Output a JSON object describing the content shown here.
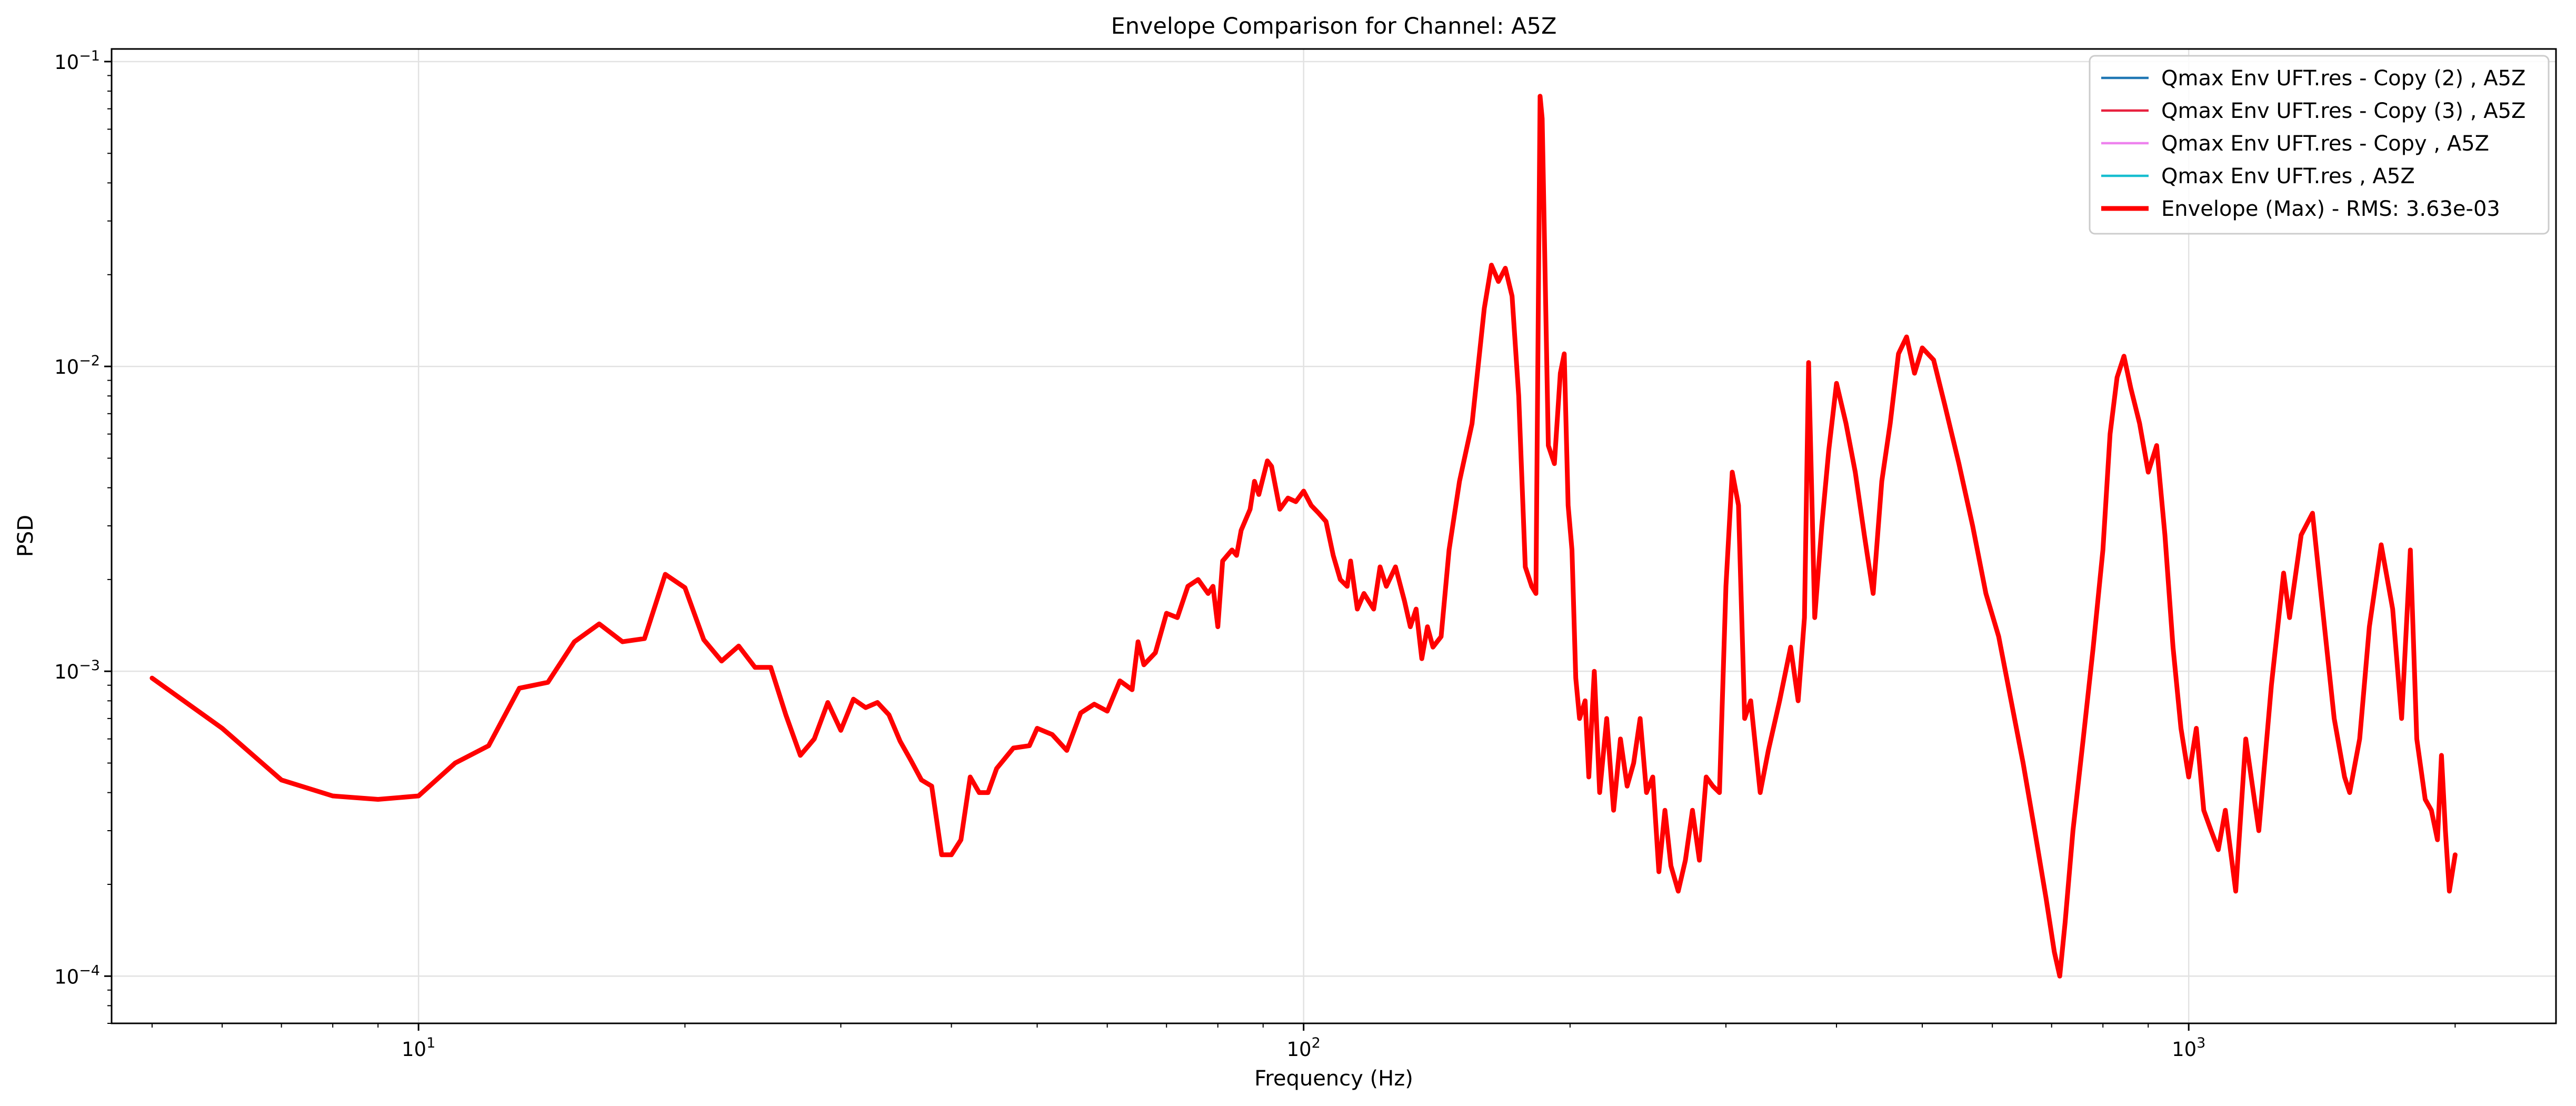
{
  "chart_data": {
    "type": "line",
    "title": "Envelope Comparison for Channel: A5Z",
    "xlabel": "Frequency (Hz)",
    "ylabel": "PSD",
    "x_scale": "log",
    "y_scale": "log",
    "xlim": [
      4.5,
      2600
    ],
    "ylim": [
      7e-05,
      0.11
    ],
    "x_ticks": [
      {
        "value": 10,
        "base": "10",
        "exp": "1"
      },
      {
        "value": 100,
        "base": "10",
        "exp": "2"
      },
      {
        "value": 1000,
        "base": "10",
        "exp": "3"
      }
    ],
    "y_ticks": [
      {
        "value": 0.0001,
        "base": "10",
        "exp": "−4"
      },
      {
        "value": 0.001,
        "base": "10",
        "exp": "−3"
      },
      {
        "value": 0.01,
        "base": "10",
        "exp": "−2"
      },
      {
        "value": 0.1,
        "base": "10",
        "exp": "−1"
      }
    ],
    "grid": true,
    "legend_position": "top-right",
    "legend": [
      {
        "label": "Qmax Env UFT.res - Copy (2) , A5Z",
        "color": "#1f77b4"
      },
      {
        "label": "Qmax Env UFT.res - Copy (3) , A5Z",
        "color": "#e8213f"
      },
      {
        "label": "Qmax Env UFT.res - Copy , A5Z",
        "color": "#ee82ee"
      },
      {
        "label": "Qmax Env UFT.res , A5Z",
        "color": "#17becf"
      },
      {
        "label": "Envelope (Max) - RMS: 3.63e-03",
        "color": "#ff0000"
      }
    ],
    "series": [
      {
        "name": "Envelope (Max) - RMS: 3.63e-03",
        "color": "#ff0000",
        "points": [
          [
            5,
            0.00095
          ],
          [
            6,
            0.00065
          ],
          [
            7,
            0.00044
          ],
          [
            8,
            0.00039
          ],
          [
            9,
            0.00038
          ],
          [
            10,
            0.00039
          ],
          [
            11,
            0.0005
          ],
          [
            12,
            0.00057
          ],
          [
            13,
            0.00088
          ],
          [
            14,
            0.00092
          ],
          [
            15,
            0.00125
          ],
          [
            16,
            0.00143
          ],
          [
            17,
            0.00125
          ],
          [
            18,
            0.00128
          ],
          [
            19,
            0.00208
          ],
          [
            20,
            0.00188
          ],
          [
            21,
            0.00127
          ],
          [
            22,
            0.00108
          ],
          [
            23,
            0.00121
          ],
          [
            24,
            0.00103
          ],
          [
            25,
            0.00103
          ],
          [
            26,
            0.00072
          ],
          [
            27,
            0.00053
          ],
          [
            28,
            0.0006
          ],
          [
            29,
            0.00079
          ],
          [
            30,
            0.00064
          ],
          [
            31,
            0.00081
          ],
          [
            32,
            0.00076
          ],
          [
            33,
            0.00079
          ],
          [
            34,
            0.00072
          ],
          [
            35,
            0.00059
          ],
          [
            36,
            0.00051
          ],
          [
            37,
            0.00044
          ],
          [
            38,
            0.00042
          ],
          [
            39,
            0.00025
          ],
          [
            40,
            0.00025
          ],
          [
            41,
            0.00028
          ],
          [
            42,
            0.00045
          ],
          [
            43,
            0.0004
          ],
          [
            44,
            0.0004
          ],
          [
            45,
            0.00048
          ],
          [
            47,
            0.00056
          ],
          [
            49,
            0.00057
          ],
          [
            50,
            0.00065
          ],
          [
            52,
            0.00062
          ],
          [
            54,
            0.00055
          ],
          [
            56,
            0.00073
          ],
          [
            58,
            0.00078
          ],
          [
            60,
            0.00074
          ],
          [
            62,
            0.00093
          ],
          [
            64,
            0.00087
          ],
          [
            65,
            0.00125
          ],
          [
            66,
            0.00105
          ],
          [
            68,
            0.00115
          ],
          [
            70,
            0.00155
          ],
          [
            72,
            0.0015
          ],
          [
            74,
            0.0019
          ],
          [
            76,
            0.002
          ],
          [
            78,
            0.0018
          ],
          [
            79,
            0.0019
          ],
          [
            80,
            0.0014
          ],
          [
            81,
            0.0023
          ],
          [
            83,
            0.0025
          ],
          [
            84,
            0.0024
          ],
          [
            85,
            0.0029
          ],
          [
            87,
            0.0034
          ],
          [
            88,
            0.0042
          ],
          [
            89,
            0.0038
          ],
          [
            91,
            0.0049
          ],
          [
            92,
            0.0047
          ],
          [
            94,
            0.0034
          ],
          [
            96,
            0.0037
          ],
          [
            98,
            0.0036
          ],
          [
            100,
            0.0039
          ],
          [
            102,
            0.0035
          ],
          [
            104,
            0.0033
          ],
          [
            106,
            0.0031
          ],
          [
            108,
            0.0024
          ],
          [
            110,
            0.002
          ],
          [
            112,
            0.0019
          ],
          [
            113,
            0.0023
          ],
          [
            115,
            0.0016
          ],
          [
            117,
            0.0018
          ],
          [
            120,
            0.0016
          ],
          [
            122,
            0.0022
          ],
          [
            124,
            0.0019
          ],
          [
            127,
            0.0022
          ],
          [
            130,
            0.0017
          ],
          [
            132,
            0.0014
          ],
          [
            134,
            0.0016
          ],
          [
            136,
            0.0011
          ],
          [
            138,
            0.0014
          ],
          [
            140,
            0.0012
          ],
          [
            143,
            0.0013
          ],
          [
            146,
            0.0025
          ],
          [
            150,
            0.0042
          ],
          [
            155,
            0.0065
          ],
          [
            160,
            0.0155
          ],
          [
            163,
            0.0215
          ],
          [
            166,
            0.019
          ],
          [
            169,
            0.021
          ],
          [
            172,
            0.017
          ],
          [
            175,
            0.008
          ],
          [
            178,
            0.0022
          ],
          [
            181,
            0.0019
          ],
          [
            183,
            0.0018
          ],
          [
            185,
            0.077
          ],
          [
            186,
            0.065
          ],
          [
            189,
            0.0055
          ],
          [
            192,
            0.0048
          ],
          [
            195,
            0.0095
          ],
          [
            197,
            0.011
          ],
          [
            199,
            0.0035
          ],
          [
            201,
            0.0025
          ],
          [
            203,
            0.00095
          ],
          [
            205,
            0.0007
          ],
          [
            208,
            0.0008
          ],
          [
            210,
            0.00045
          ],
          [
            213,
            0.001
          ],
          [
            216,
            0.0004
          ],
          [
            220,
            0.0007
          ],
          [
            224,
            0.00035
          ],
          [
            228,
            0.0006
          ],
          [
            232,
            0.00042
          ],
          [
            236,
            0.0005
          ],
          [
            240,
            0.0007
          ],
          [
            244,
            0.0004
          ],
          [
            248,
            0.00045
          ],
          [
            252,
            0.00022
          ],
          [
            256,
            0.00035
          ],
          [
            260,
            0.00023
          ],
          [
            265,
            0.00019
          ],
          [
            270,
            0.00024
          ],
          [
            275,
            0.00035
          ],
          [
            280,
            0.00024
          ],
          [
            285,
            0.00045
          ],
          [
            290,
            0.00042
          ],
          [
            295,
            0.0004
          ],
          [
            300,
            0.0019
          ],
          [
            305,
            0.0045
          ],
          [
            310,
            0.0035
          ],
          [
            315,
            0.0007
          ],
          [
            320,
            0.0008
          ],
          [
            328,
            0.0004
          ],
          [
            335,
            0.00055
          ],
          [
            345,
            0.0008
          ],
          [
            355,
            0.0012
          ],
          [
            362,
            0.0008
          ],
          [
            368,
            0.0015
          ],
          [
            372,
            0.0103
          ],
          [
            378,
            0.0015
          ],
          [
            385,
            0.003
          ],
          [
            392,
            0.0053
          ],
          [
            400,
            0.0088
          ],
          [
            410,
            0.0065
          ],
          [
            420,
            0.0045
          ],
          [
            430,
            0.0028
          ],
          [
            440,
            0.0018
          ],
          [
            450,
            0.0042
          ],
          [
            460,
            0.0065
          ],
          [
            470,
            0.011
          ],
          [
            480,
            0.0125
          ],
          [
            490,
            0.0095
          ],
          [
            500,
            0.0115
          ],
          [
            515,
            0.0105
          ],
          [
            530,
            0.0075
          ],
          [
            550,
            0.0048
          ],
          [
            570,
            0.003
          ],
          [
            590,
            0.0018
          ],
          [
            610,
            0.0013
          ],
          [
            630,
            0.0008
          ],
          [
            650,
            0.0005
          ],
          [
            670,
            0.0003
          ],
          [
            690,
            0.00018
          ],
          [
            705,
            0.00012
          ],
          [
            715,
            0.0001
          ],
          [
            725,
            0.00015
          ],
          [
            740,
            0.0003
          ],
          [
            760,
            0.0006
          ],
          [
            780,
            0.0012
          ],
          [
            800,
            0.0025
          ],
          [
            815,
            0.006
          ],
          [
            830,
            0.0092
          ],
          [
            845,
            0.0108
          ],
          [
            860,
            0.0085
          ],
          [
            880,
            0.0065
          ],
          [
            900,
            0.0045
          ],
          [
            920,
            0.0055
          ],
          [
            940,
            0.0028
          ],
          [
            960,
            0.0012
          ],
          [
            980,
            0.00065
          ],
          [
            1000,
            0.00045
          ],
          [
            1020,
            0.00065
          ],
          [
            1040,
            0.00035
          ],
          [
            1060,
            0.0003
          ],
          [
            1080,
            0.00026
          ],
          [
            1100,
            0.00035
          ],
          [
            1130,
            0.00019
          ],
          [
            1160,
            0.0006
          ],
          [
            1200,
            0.0003
          ],
          [
            1240,
            0.0009
          ],
          [
            1280,
            0.0021
          ],
          [
            1300,
            0.0015
          ],
          [
            1340,
            0.0028
          ],
          [
            1380,
            0.0033
          ],
          [
            1420,
            0.0015
          ],
          [
            1460,
            0.0007
          ],
          [
            1500,
            0.00045
          ],
          [
            1520,
            0.0004
          ],
          [
            1560,
            0.0006
          ],
          [
            1600,
            0.0014
          ],
          [
            1650,
            0.0026
          ],
          [
            1700,
            0.0016
          ],
          [
            1740,
            0.0007
          ],
          [
            1780,
            0.0025
          ],
          [
            1810,
            0.0006
          ],
          [
            1850,
            0.00038
          ],
          [
            1880,
            0.00035
          ],
          [
            1910,
            0.00028
          ],
          [
            1930,
            0.00053
          ],
          [
            1950,
            0.0003
          ],
          [
            1970,
            0.00019
          ],
          [
            2000,
            0.00025
          ]
        ]
      }
    ]
  }
}
